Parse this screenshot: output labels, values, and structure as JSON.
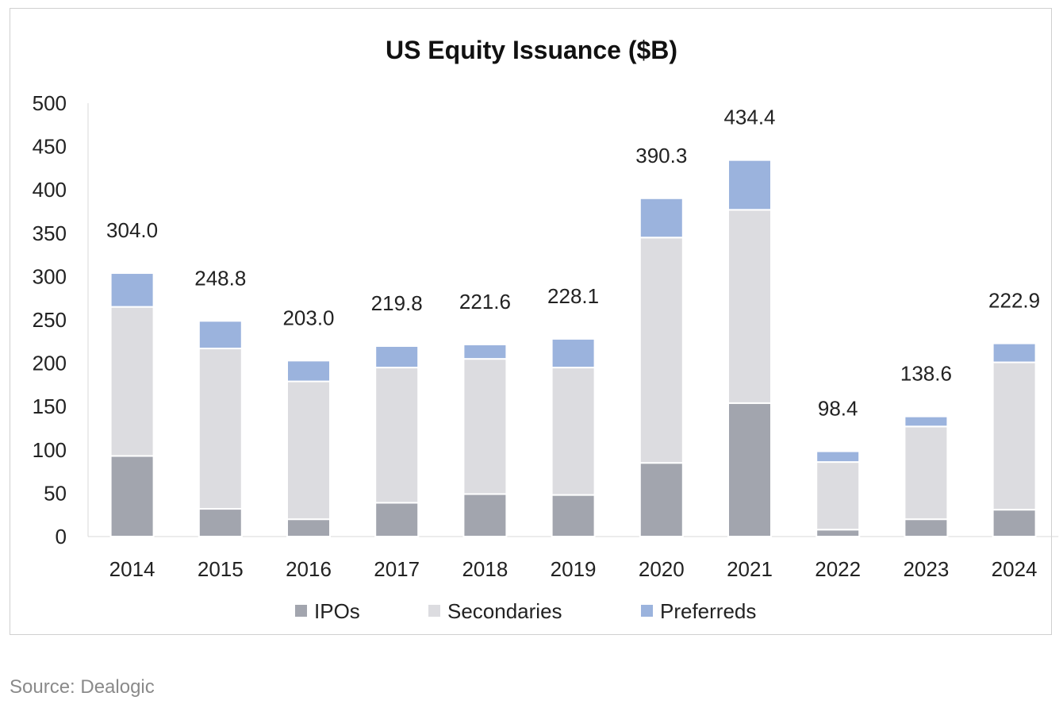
{
  "chart_data": {
    "type": "bar",
    "stacked": true,
    "title": "US Equity Issuance ($B)",
    "xlabel": "",
    "ylabel": "",
    "ylim": [
      0,
      500
    ],
    "yticks": [
      0,
      50,
      100,
      150,
      200,
      250,
      300,
      350,
      400,
      450,
      500
    ],
    "grid": false,
    "legend": "bottom",
    "categories": [
      "2014",
      "2015",
      "2016",
      "2017",
      "2018",
      "2019",
      "2020",
      "2021",
      "2022",
      "2023",
      "2024"
    ],
    "series": [
      {
        "name": "IPOs",
        "color": "#a2a5ae",
        "values": [
          93,
          32,
          20,
          39,
          49,
          48,
          85,
          154,
          8,
          20,
          31
        ]
      },
      {
        "name": "Secondaries",
        "color": "#dcdce0",
        "values": [
          172,
          185,
          159,
          156,
          156,
          147,
          260,
          223,
          78,
          107,
          170
        ]
      },
      {
        "name": "Preferreds",
        "color": "#9bb3dd",
        "values": [
          39.0,
          31.8,
          24.0,
          24.8,
          16.6,
          33.1,
          45.3,
          57.4,
          12.4,
          11.6,
          21.9
        ]
      }
    ],
    "totals": [
      "304.0",
      "248.8",
      "203.0",
      "219.8",
      "221.6",
      "228.1",
      "390.3",
      "434.4",
      "98.4",
      "138.6",
      "222.9"
    ]
  },
  "source": "Source: Dealogic"
}
